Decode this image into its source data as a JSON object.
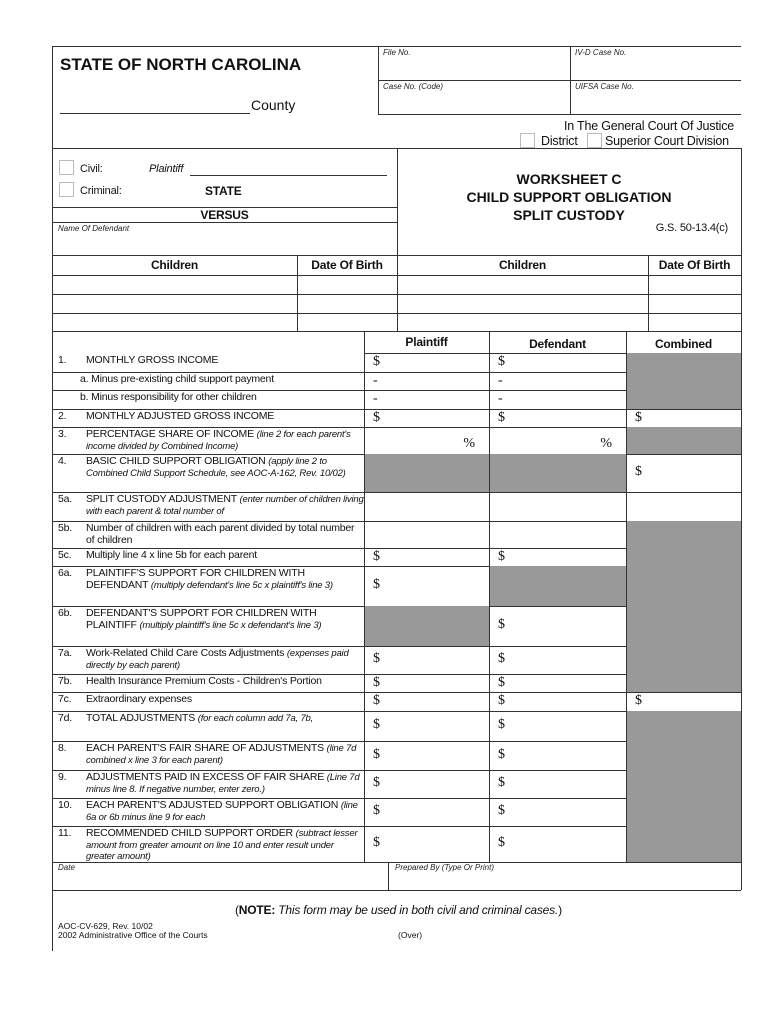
{
  "header": {
    "state": "STATE OF NORTH CAROLINA",
    "county": "County",
    "file_no": "File No.",
    "ivd_case_no": "IV-D Case No.",
    "case_no_code": "Case No. (Code)",
    "uifsa_case_no": "UIFSA Case No.",
    "court": "In The General Court Of Justice",
    "district": "District",
    "superior": "Superior Court Division"
  },
  "parties": {
    "civil": "Civil:",
    "criminal": "Criminal:",
    "plaintiff": "Plaintiff",
    "state": "STATE",
    "versus": "VERSUS",
    "name_of_defendant": "Name Of Defendant"
  },
  "title": {
    "line1": "WORKSHEET C",
    "line2": "CHILD SUPPORT OBLIGATION",
    "line3": "SPLIT CUSTODY",
    "statute": "G.S. 50-13.4(c)"
  },
  "children_table": {
    "headers": [
      "Children",
      "Date Of Birth",
      "Children",
      "Date Of Birth"
    ],
    "rows": 3
  },
  "worksheet": {
    "columns": [
      "Plaintiff",
      "Defendant",
      "Combined"
    ],
    "shade_color": "#999999",
    "rows": [
      {
        "num": "1.",
        "label": "MONTHLY GROSS INCOME",
        "note": "",
        "cells": [
          "$",
          "$",
          ""
        ],
        "gray": [
          0,
          0,
          1
        ],
        "indent": 0
      },
      {
        "num": "",
        "label": "a.  Minus pre-existing child support payment",
        "note": "",
        "cells": [
          "-",
          "-",
          ""
        ],
        "gray": [
          0,
          0,
          1
        ],
        "indent": 1
      },
      {
        "num": "",
        "label": "b.  Minus responsibility for other children",
        "note": "",
        "cells": [
          "-",
          "-",
          ""
        ],
        "gray": [
          0,
          0,
          1
        ],
        "indent": 1
      },
      {
        "num": "2.",
        "label": "MONTHLY ADJUSTED GROSS INCOME",
        "note": "",
        "cells": [
          "$",
          "$",
          "$"
        ],
        "gray": [
          0,
          0,
          0
        ]
      },
      {
        "num": "3.",
        "label": "PERCENTAGE SHARE OF INCOME",
        "note": "(line 2 for each parent's income divided by Combined Income)",
        "cells": [
          "%",
          "%",
          ""
        ],
        "gray": [
          0,
          0,
          1
        ]
      },
      {
        "num": "4.",
        "label": "BASIC CHILD SUPPORT OBLIGATION",
        "note": "(apply line 2 to Combined Child Support Schedule, see AOC-A-162, Rev. 10/02)",
        "cells": [
          "",
          "",
          "$"
        ],
        "gray": [
          1,
          1,
          0
        ]
      },
      {
        "num": "5a.",
        "label": "SPLIT CUSTODY ADJUSTMENT",
        "note": "(enter number of children living with each parent & total number of",
        "cells": [
          "",
          "",
          ""
        ],
        "gray": [
          0,
          0,
          0
        ]
      },
      {
        "num": "5b.",
        "label": "Number of children with each parent divided by total number of children",
        "note": "",
        "cells": [
          "",
          "",
          ""
        ],
        "gray": [
          0,
          0,
          1
        ]
      },
      {
        "num": "5c.",
        "label": "Multiply line 4 x line 5b for each parent",
        "note": "",
        "cells": [
          "$",
          "$",
          ""
        ],
        "gray": [
          0,
          0,
          1
        ]
      },
      {
        "num": "6a.",
        "label": "PLAINTIFF'S SUPPORT FOR CHILDREN WITH DEFENDANT",
        "note": "(multiply defendant's line 5c x plaintiff's line 3)",
        "cells": [
          "$",
          "",
          ""
        ],
        "gray": [
          0,
          1,
          1
        ]
      },
      {
        "num": "6b.",
        "label": "DEFENDANT'S SUPPORT FOR CHILDREN WITH PLAINTIFF",
        "note": "(multiply plaintiff's line 5c x defendant's line 3)",
        "cells": [
          "",
          "$",
          ""
        ],
        "gray": [
          1,
          0,
          1
        ]
      },
      {
        "num": "7a.",
        "label": "Work-Related Child Care Costs Adjustments",
        "note": "(expenses paid directly by each parent)",
        "cells": [
          "$",
          "$",
          ""
        ],
        "gray": [
          0,
          0,
          1
        ]
      },
      {
        "num": "7b.",
        "label": "Health Insurance Premium Costs - Children's Portion",
        "note": "",
        "cells": [
          "$",
          "$",
          ""
        ],
        "gray": [
          0,
          0,
          1
        ]
      },
      {
        "num": "7c.",
        "label": "Extraordinary expenses",
        "note": "",
        "cells": [
          "$",
          "$",
          "$"
        ],
        "gray": [
          0,
          0,
          0
        ]
      },
      {
        "num": "7d.",
        "label": "TOTAL ADJUSTMENTS",
        "note": "(for each column add 7a, 7b,",
        "cells": [
          "$",
          "$",
          ""
        ],
        "gray": [
          0,
          0,
          1
        ]
      },
      {
        "num": "8.",
        "label": "EACH PARENT'S FAIR SHARE OF ADJUSTMENTS",
        "note": "(line 7d combined x line 3 for each parent)",
        "cells": [
          "$",
          "$",
          ""
        ],
        "gray": [
          0,
          0,
          1
        ]
      },
      {
        "num": "9.",
        "label": "ADJUSTMENTS PAID IN EXCESS OF FAIR SHARE",
        "note": "(Line 7d minus line 8. If negative number, enter zero.)",
        "cells": [
          "$",
          "$",
          ""
        ],
        "gray": [
          0,
          0,
          1
        ]
      },
      {
        "num": "10.",
        "label": "EACH PARENT'S ADJUSTED SUPPORT OBLIGATION",
        "note": "(line 6a or 6b minus line 9 for each",
        "cells": [
          "$",
          "$",
          ""
        ],
        "gray": [
          0,
          0,
          1
        ]
      },
      {
        "num": "11.",
        "label": "RECOMMENDED CHILD SUPPORT ORDER",
        "note": "(subtract lesser amount from greater amount on line 10 and enter result under greater amount)",
        "cells": [
          "$",
          "$",
          ""
        ],
        "gray": [
          0,
          0,
          1
        ]
      }
    ]
  },
  "signature": {
    "date": "Date",
    "prepared_by": "Prepared By (Type Or Print)"
  },
  "note": {
    "bold": "NOTE:",
    "text": "This form may be used in both civil and criminal cases."
  },
  "footer": {
    "form_no": "AOC-CV-629, Rev. 10/02",
    "copyright": "2002 Administrative Office of the Courts",
    "over": "(Over)"
  }
}
